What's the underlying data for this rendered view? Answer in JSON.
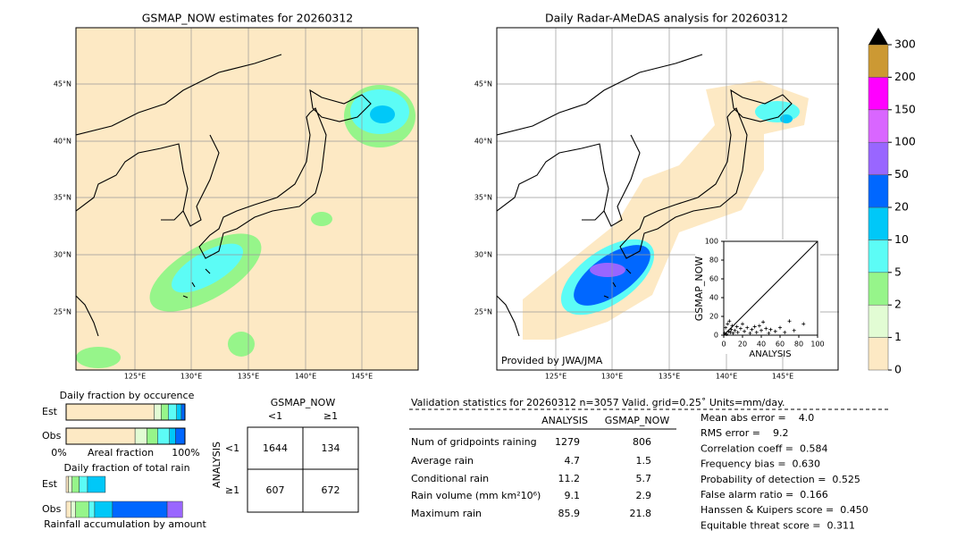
{
  "left_map": {
    "title": "GSMAP_NOW estimates for 20260312",
    "lat_labels": [
      "45°N",
      "40°N",
      "35°N",
      "30°N",
      "25°N"
    ],
    "lon_labels": [
      "125°E",
      "130°E",
      "135°E",
      "140°E",
      "145°E"
    ]
  },
  "right_map": {
    "title": "Daily Radar-AMeDAS analysis for 20260312",
    "credit": "Provided by JWA/JMA",
    "lat_labels": [
      "45°N",
      "40°N",
      "35°N",
      "30°N",
      "25°N"
    ],
    "lon_labels": [
      "125°E",
      "130°E",
      "135°E",
      "140°E",
      "145°E"
    ]
  },
  "colorbar": {
    "levels": [
      0,
      1,
      2,
      5,
      10,
      20,
      50,
      100,
      150,
      200,
      300
    ],
    "colors": [
      "#fde9c4",
      "#e2fcd4",
      "#96f58a",
      "#5cfcf6",
      "#00c8f8",
      "#0067ff",
      "#9966ff",
      "#d966ff",
      "#ff00ff",
      "#cc9933"
    ]
  },
  "scatter": {
    "type": "scatter",
    "xlabel": "ANALYSIS",
    "ylabel": "GSMAP_NOW",
    "xlim": [
      0,
      100
    ],
    "ylim": [
      0,
      100
    ],
    "xticks": [
      0,
      20,
      40,
      60,
      80,
      100
    ],
    "yticks": [
      0,
      20,
      40,
      60,
      80,
      100
    ],
    "x": [
      1,
      2,
      3,
      4,
      5,
      6,
      7,
      8,
      9,
      10,
      12,
      14,
      15,
      18,
      20,
      22,
      25,
      28,
      30,
      33,
      35,
      38,
      40,
      42,
      45,
      48,
      50,
      55,
      60,
      65,
      70,
      75,
      85
    ],
    "y": [
      2,
      8,
      1,
      12,
      4,
      15,
      3,
      6,
      10,
      2,
      5,
      9,
      3,
      7,
      12,
      4,
      8,
      2,
      6,
      9,
      3,
      10,
      5,
      14,
      7,
      2,
      6,
      4,
      8,
      3,
      15,
      5,
      12
    ]
  },
  "occurrence": {
    "title": "Daily fraction by occurence",
    "rows": [
      "Est",
      "Obs"
    ],
    "est": [
      74,
      6,
      6,
      7,
      4,
      3
    ],
    "obs": [
      58,
      10,
      9,
      10,
      5,
      8
    ],
    "axis_left": "0%",
    "axis_mid": "Areal fraction",
    "axis_right": "100%"
  },
  "total_rain": {
    "title": "Daily fraction of total rain",
    "rows": [
      "Est",
      "Obs"
    ],
    "est": [
      2,
      3,
      6,
      7,
      15
    ],
    "obs": [
      4,
      4,
      11,
      5,
      15,
      46,
      13
    ],
    "caption": "Rainfall accumulation by amount"
  },
  "contingency": {
    "col_title": "GSMAP_NOW",
    "row_title": "ANALYSIS",
    "col_labels": [
      "<1",
      "≥1"
    ],
    "row_labels": [
      "<1",
      "≥1"
    ],
    "cells": [
      [
        1644,
        134
      ],
      [
        607,
        672
      ]
    ]
  },
  "validation": {
    "title": "Validation statistics for 20260312  n=3057 Valid. grid=0.25˚ Units=mm/day.",
    "headers": [
      "ANALYSIS",
      "GSMAP_NOW"
    ],
    "rows": [
      {
        "label": "Num of gridpoints raining",
        "analysis": 1279,
        "gsmap": 806
      },
      {
        "label": "Average rain",
        "analysis": 4.7,
        "gsmap": 1.5
      },
      {
        "label": "Conditional rain",
        "analysis": 11.2,
        "gsmap": 5.7
      },
      {
        "label": "Rain volume (mm km²10⁶)",
        "analysis": 9.1,
        "gsmap": 2.9
      },
      {
        "label": "Maximum rain",
        "analysis": 85.9,
        "gsmap": 21.8
      }
    ],
    "scores": [
      "Mean abs error =    4.0",
      "RMS error =    9.2",
      "Correlation coeff =  0.584",
      "Frequency bias =  0.630",
      "Probability of detection =  0.525",
      "False alarm ratio =  0.166",
      "Hanssen & Kuipers score =  0.450",
      "Equitable threat score =  0.311"
    ]
  }
}
